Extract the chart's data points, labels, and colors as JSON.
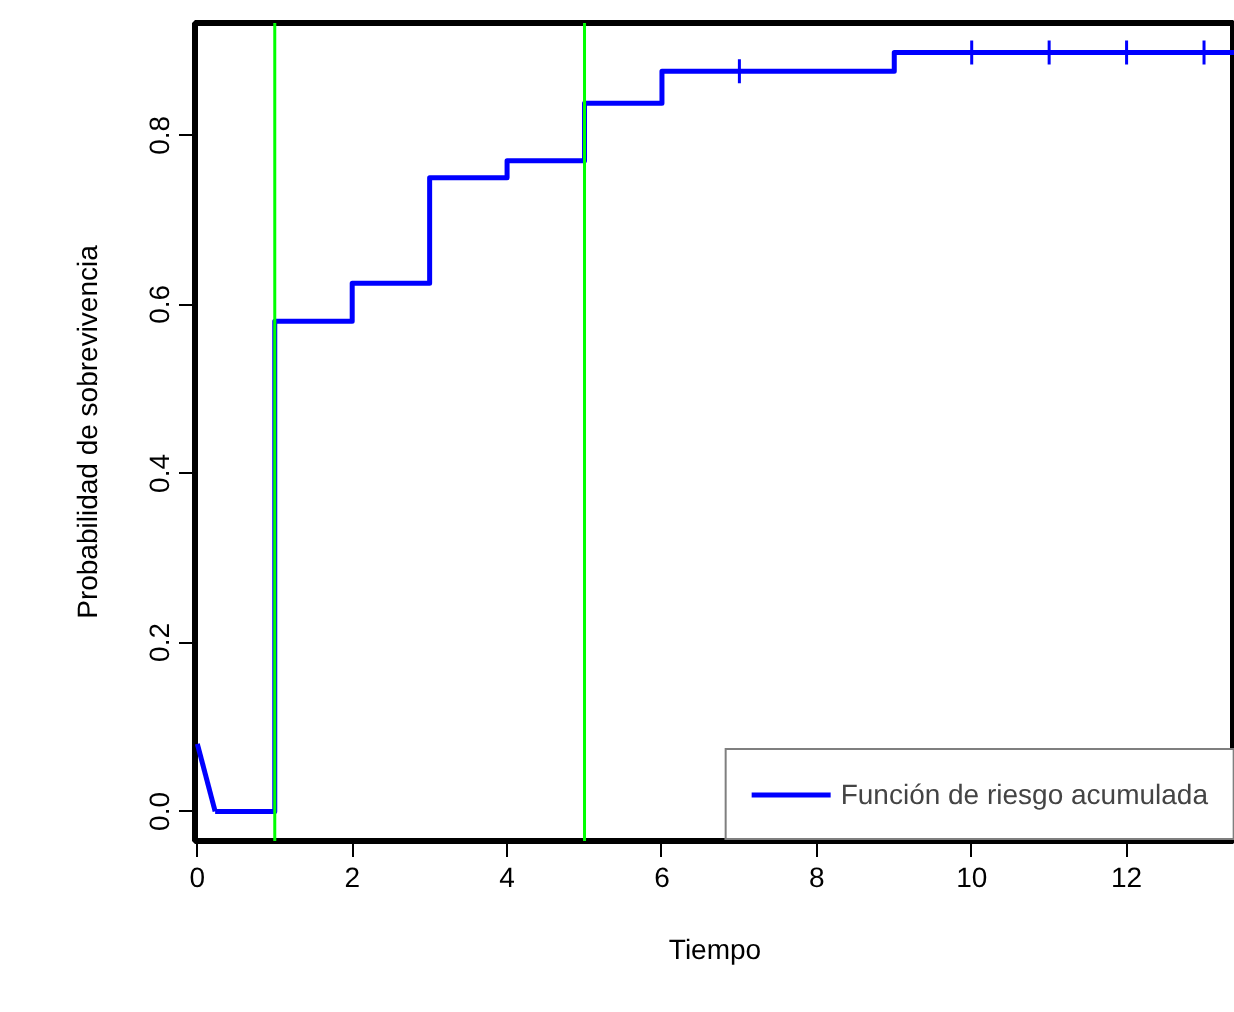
{
  "chart_data": {
    "type": "step",
    "xlabel": "Tiempo",
    "ylabel": "Probabilidad de sobrevivencia",
    "xlim": [
      -0.03,
      13.4
    ],
    "ylim": [
      -0.035,
      0.933
    ],
    "xticks": [
      0,
      2,
      4,
      6,
      8,
      10,
      12
    ],
    "yticks": [
      {
        "value": 0,
        "label": "0.0"
      },
      {
        "value": 0.2,
        "label": "0.2"
      },
      {
        "value": 0.4,
        "label": "0.4"
      },
      {
        "value": 0.6,
        "label": "0.6"
      },
      {
        "value": 0.8,
        "label": "0.8"
      }
    ],
    "series": [
      {
        "type": "line",
        "color": "#0000ff",
        "x": [
          0,
          0.23
        ],
        "values": [
          0.08,
          0
        ]
      },
      {
        "name": "Función de riesgo acumulada",
        "color": "#0000ff",
        "x": [
          0.23,
          1,
          2,
          3,
          4,
          5,
          6,
          9,
          13.4
        ],
        "values": [
          0,
          0.58,
          0.625,
          0.75,
          0.77,
          0.838,
          0.876,
          0.898,
          0.898
        ]
      },
      {
        "type": "scatter",
        "marker": "cross",
        "color": "#0000ff",
        "x": [
          7,
          10,
          11,
          12,
          13
        ],
        "values": [
          0.876,
          0.898,
          0.898,
          0.898,
          0.898
        ]
      }
    ],
    "ref_lines": [
      {
        "axis": "x",
        "value": 1,
        "label": null,
        "color": "#00ff00"
      },
      {
        "axis": "x",
        "value": 5,
        "label": null,
        "color": "#00ff00"
      }
    ],
    "grid": false,
    "legend": "bottom right"
  }
}
